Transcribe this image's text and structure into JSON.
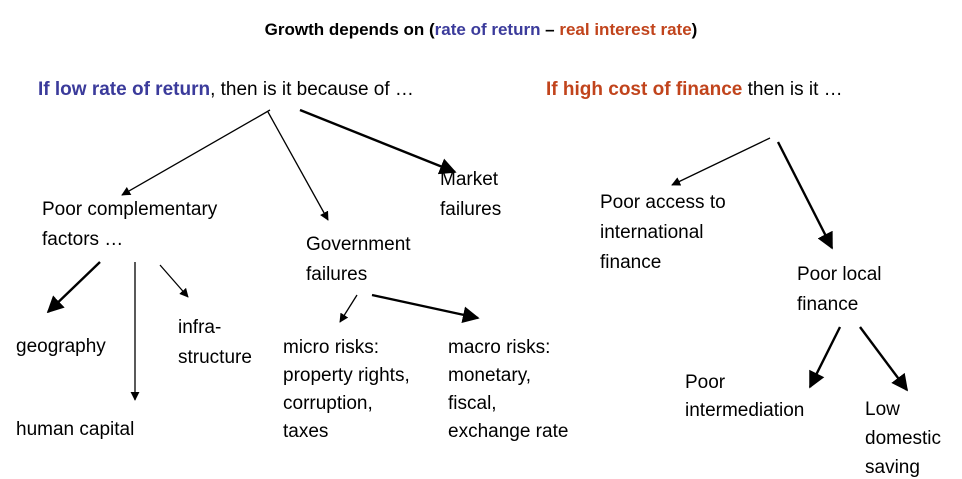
{
  "title": {
    "parts": [
      "Growth depends on (",
      "rate of return",
      " – ",
      "real interest rate",
      ")"
    ]
  },
  "left_heading": {
    "highlight": "If low rate of return",
    "rest": ", then is it because of …"
  },
  "right_heading": {
    "highlight": "If high cost of finance",
    "rest": " then is it …"
  },
  "nodes": [
    {
      "lines": [
        "Poor complementary",
        "factors …"
      ]
    },
    {
      "lines": [
        "Market",
        "failures"
      ]
    },
    {
      "lines": [
        "Government",
        "failures"
      ]
    },
    {
      "lines": [
        "geography"
      ]
    },
    {
      "lines": [
        "infra-",
        "structure"
      ]
    },
    {
      "lines": [
        "human capital"
      ]
    },
    {
      "lines": [
        "micro risks:",
        "property rights,",
        "corruption,",
        "taxes"
      ]
    },
    {
      "lines": [
        "macro risks:",
        "monetary,",
        "fiscal,",
        "exchange rate"
      ]
    },
    {
      "lines": [
        "Poor access to",
        "international",
        "finance"
      ]
    },
    {
      "lines": [
        "Poor local",
        "finance"
      ]
    },
    {
      "lines": [
        "Poor",
        "intermediation"
      ]
    },
    {
      "lines": [
        "Low",
        "domestic",
        "saving"
      ]
    }
  ]
}
